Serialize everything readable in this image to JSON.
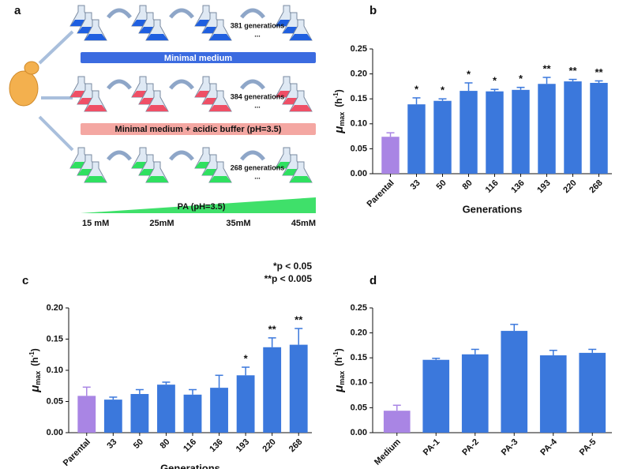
{
  "diagram": {
    "panel": "a",
    "rows": [
      {
        "generations": "381 generations",
        "dots": "...",
        "medium": "Minimal medium"
      },
      {
        "generations": "384 generations",
        "dots": "...",
        "medium": "Minimal medium + acidic buffer (pH=3.5)"
      },
      {
        "generations": "268 generations",
        "dots": "...",
        "medium": "PA  (pH=3.5)"
      }
    ],
    "concentrations": [
      "15 mM",
      "25mM",
      "35mM",
      "45mM"
    ]
  },
  "chart_data": [
    {
      "type": "bar",
      "panel": "b",
      "x_label": "Generations",
      "y_label": [
        "μ",
        "max",
        "(h",
        "-1",
        ")"
      ],
      "categories": [
        "Parental",
        "33",
        "50",
        "80",
        "116",
        "136",
        "193",
        "220",
        "268"
      ],
      "values": [
        0.074,
        0.139,
        0.146,
        0.166,
        0.165,
        0.168,
        0.18,
        0.185,
        0.182
      ],
      "errors": [
        0.008,
        0.013,
        0.004,
        0.016,
        0.004,
        0.005,
        0.013,
        0.004,
        0.004
      ],
      "annotations": [
        null,
        "*",
        "*",
        "*",
        "*",
        "*",
        "**",
        "**",
        "**"
      ],
      "colors": [
        "#a985e4",
        "#3b78dc",
        "#3b78dc",
        "#3b78dc",
        "#3b78dc",
        "#3b78dc",
        "#3b78dc",
        "#3b78dc",
        "#3b78dc"
      ],
      "ylim": [
        0,
        0.25
      ],
      "yticks": [
        {
          "value": 0,
          "label": "0.00"
        },
        {
          "value": 0.05,
          "label": "0.05"
        },
        {
          "value": 0.1,
          "label": "0.10"
        },
        {
          "value": 0.15,
          "label": "0.15"
        },
        {
          "value": 0.2,
          "label": "0.20"
        },
        {
          "value": 0.25,
          "label": "0.25"
        }
      ]
    },
    {
      "type": "bar",
      "panel": "c",
      "x_label": "Generations",
      "y_label": [
        "μ",
        "max",
        "(h",
        "-1",
        ")"
      ],
      "notes": [
        "*p < 0.05",
        "**p < 0.005"
      ],
      "categories": [
        "Parental",
        "33",
        "50",
        "80",
        "116",
        "136",
        "193",
        "220",
        "268"
      ],
      "values": [
        0.059,
        0.053,
        0.062,
        0.077,
        0.061,
        0.072,
        0.092,
        0.137,
        0.141
      ],
      "errors": [
        0.014,
        0.004,
        0.007,
        0.004,
        0.008,
        0.02,
        0.013,
        0.015,
        0.026
      ],
      "annotations": [
        null,
        null,
        null,
        null,
        null,
        null,
        "*",
        "**",
        "**"
      ],
      "colors": [
        "#a985e4",
        "#3b78dc",
        "#3b78dc",
        "#3b78dc",
        "#3b78dc",
        "#3b78dc",
        "#3b78dc",
        "#3b78dc",
        "#3b78dc"
      ],
      "ylim": [
        0,
        0.2
      ],
      "yticks": [
        {
          "value": 0,
          "label": "0.00"
        },
        {
          "value": 0.05,
          "label": "0.05"
        },
        {
          "value": 0.1,
          "label": "0.10"
        },
        {
          "value": 0.15,
          "label": "0.15"
        },
        {
          "value": 0.2,
          "label": "0.20"
        }
      ]
    },
    {
      "type": "bar",
      "panel": "d",
      "y_label": [
        "μ",
        "max",
        "(h",
        "-1",
        ")"
      ],
      "categories": [
        "Medium",
        "PA-1",
        "PA-2",
        "PA-3",
        "PA-4",
        "PA-5"
      ],
      "values": [
        0.044,
        0.146,
        0.157,
        0.204,
        0.155,
        0.16
      ],
      "errors": [
        0.011,
        0.003,
        0.01,
        0.013,
        0.01,
        0.007
      ],
      "colors": [
        "#a985e4",
        "#3b78dc",
        "#3b78dc",
        "#3b78dc",
        "#3b78dc",
        "#3b78dc"
      ],
      "ylim": [
        0,
        0.25
      ],
      "yticks": [
        {
          "value": 0,
          "label": "0.00"
        },
        {
          "value": 0.05,
          "label": "0.05"
        },
        {
          "value": 0.1,
          "label": "0.10"
        },
        {
          "value": 0.15,
          "label": "0.15"
        },
        {
          "value": 0.2,
          "label": "0.20"
        },
        {
          "value": 0.25,
          "label": "0.25"
        }
      ]
    }
  ]
}
